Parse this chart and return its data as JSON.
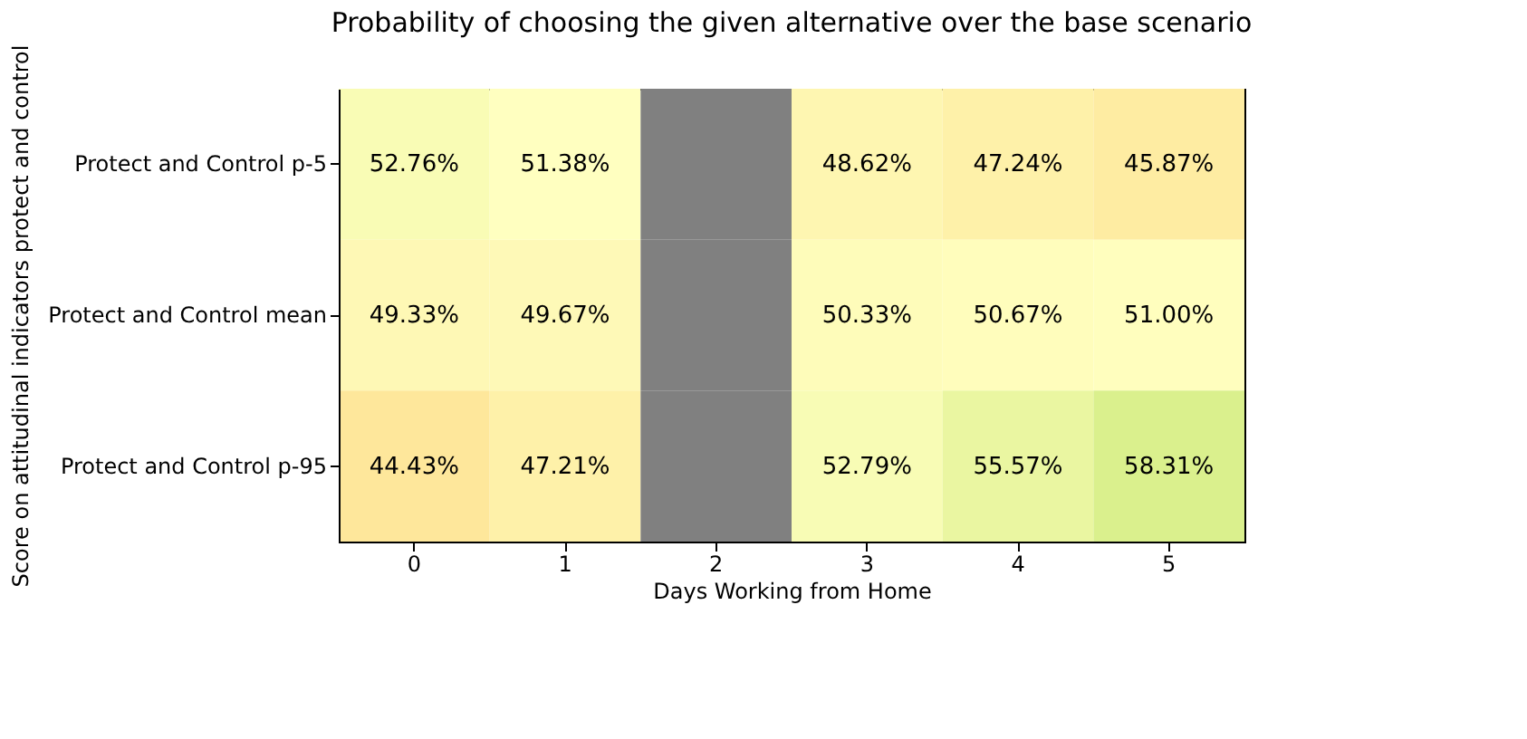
{
  "chart_data": {
    "type": "heatmap",
    "title": "Probability of choosing the given alternative over the base scenario",
    "xlabel": "Days Working from Home",
    "ylabel": "Score on attitudinal indicators protect and control",
    "categories": [
      "0",
      "1",
      "2",
      "3",
      "4",
      "5"
    ],
    "y_categories": [
      "Protect and Control p-5",
      "Protect and Control mean",
      "Protect and Control p-95"
    ],
    "cells": [
      [
        52.76,
        51.38,
        null,
        48.62,
        47.24,
        45.87
      ],
      [
        49.33,
        49.67,
        null,
        50.33,
        50.67,
        51.0
      ],
      [
        44.43,
        47.21,
        null,
        52.79,
        55.57,
        58.31
      ]
    ],
    "cell_labels": [
      [
        "52.76%",
        "51.38%",
        null,
        "48.62%",
        "47.24%",
        "45.87%"
      ],
      [
        "49.33%",
        "49.67%",
        null,
        "50.33%",
        "50.67%",
        "51.00%"
      ],
      [
        "44.43%",
        "47.21%",
        null,
        "52.79%",
        "55.57%",
        "58.31%"
      ]
    ],
    "grid": false
  }
}
